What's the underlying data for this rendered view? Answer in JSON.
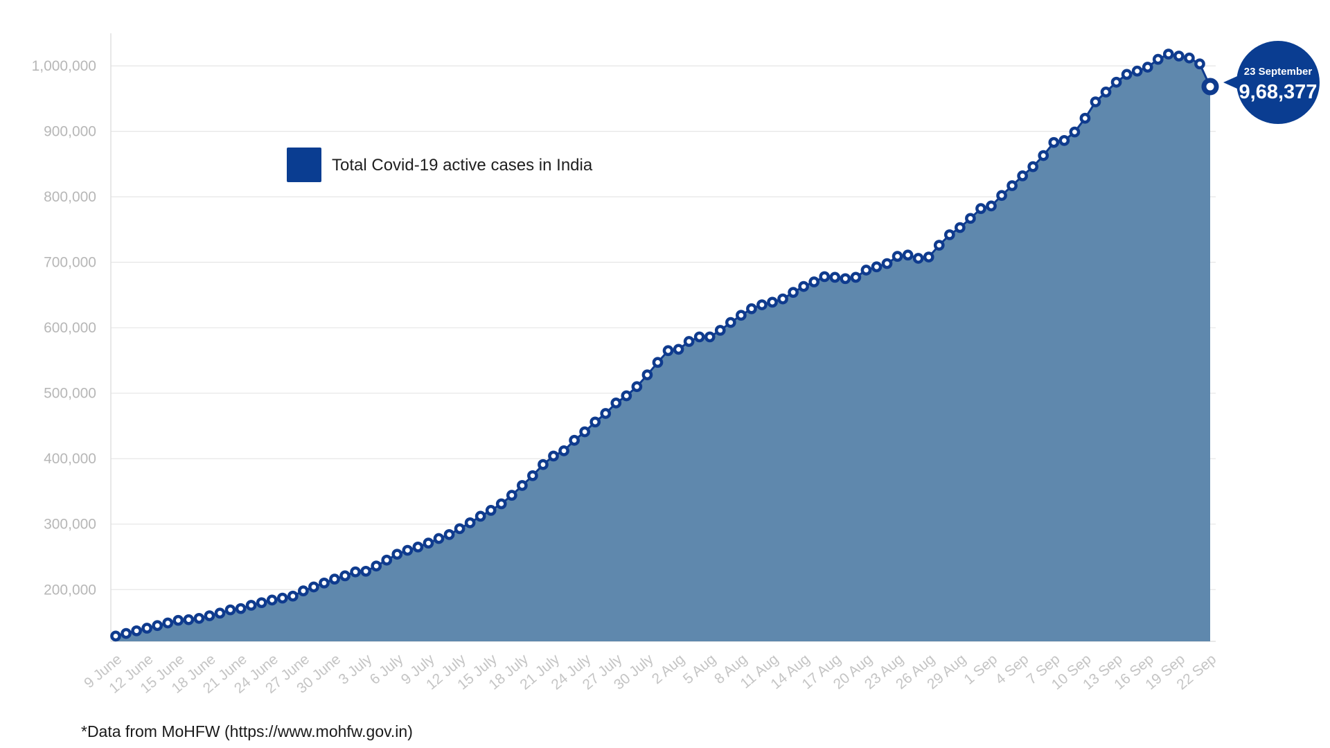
{
  "chart_data": {
    "type": "area",
    "title": "",
    "xlabel": "",
    "ylabel": "",
    "ylim": [
      120000,
      1050000
    ],
    "yticks": [
      200000,
      300000,
      400000,
      500000,
      600000,
      700000,
      800000,
      900000,
      1000000
    ],
    "ytick_labels": [
      "200,000",
      "300,000",
      "400,000",
      "500,000",
      "600,000",
      "700,000",
      "800,000",
      "900,000",
      "1,000,000"
    ],
    "x_start": "9 June",
    "x_end": "23 September",
    "x_tick_labels": [
      "9 June",
      "12 June",
      "15 June",
      "18 June",
      "21 June",
      "24 June",
      "27 June",
      "30 June",
      "3 July",
      "6 July",
      "9 July",
      "12 July",
      "15 July",
      "18 July",
      "21 July",
      "24 July",
      "27 July",
      "30 July",
      "2 Aug",
      "5 Aug",
      "8 Aug",
      "11 Aug",
      "14 Aug",
      "17 Aug",
      "20 Aug",
      "23 Aug",
      "26 Aug",
      "29 Aug",
      "1 Sep",
      "4 Sep",
      "7 Sep",
      "10 Sep",
      "13 Sep",
      "16 Sep",
      "19 Sep",
      "22 Sep"
    ],
    "series": [
      {
        "name": "Total Covid-19 active cases in India",
        "color": "#0f3b8e",
        "fill_color": "#5f88ad",
        "values": [
          129000,
          133000,
          137000,
          141000,
          145000,
          149000,
          153000,
          154000,
          156000,
          160000,
          164000,
          169000,
          171000,
          176000,
          180000,
          184000,
          187000,
          190000,
          198000,
          204000,
          210000,
          216000,
          221000,
          227000,
          228000,
          236000,
          245000,
          254000,
          260000,
          265000,
          271000,
          278000,
          284000,
          293000,
          302000,
          312000,
          321000,
          331000,
          344000,
          359000,
          374000,
          391000,
          404000,
          412000,
          428000,
          441000,
          456000,
          469000,
          485000,
          496000,
          510000,
          528000,
          547000,
          565000,
          567000,
          579000,
          586000,
          586000,
          596000,
          608000,
          619000,
          629000,
          635000,
          639000,
          644000,
          654000,
          663000,
          670000,
          678000,
          677000,
          675000,
          677000,
          688000,
          693000,
          698000,
          709000,
          711000,
          706000,
          708000,
          726000,
          742000,
          753000,
          767000,
          782000,
          786000,
          802000,
          817000,
          832000,
          846000,
          863000,
          883000,
          886000,
          899000,
          920000,
          945000,
          960000,
          975000,
          987000,
          992000,
          998000,
          1010000,
          1018000,
          1015000,
          1012000,
          1003000,
          968377
        ]
      }
    ],
    "annotations": [
      {
        "date": "23 September",
        "value_label": "9,68,377",
        "value": 968377
      }
    ],
    "grid": true,
    "legend_position": "top-left"
  },
  "legend": {
    "label": "Total Covid-19 active cases in India",
    "color": "#0a3d91"
  },
  "callout": {
    "date": "23 September",
    "value": "9,68,377",
    "color": "#0a3d91"
  },
  "footnote": "*Data from MoHFW (https://www.mohfw.gov.in)"
}
